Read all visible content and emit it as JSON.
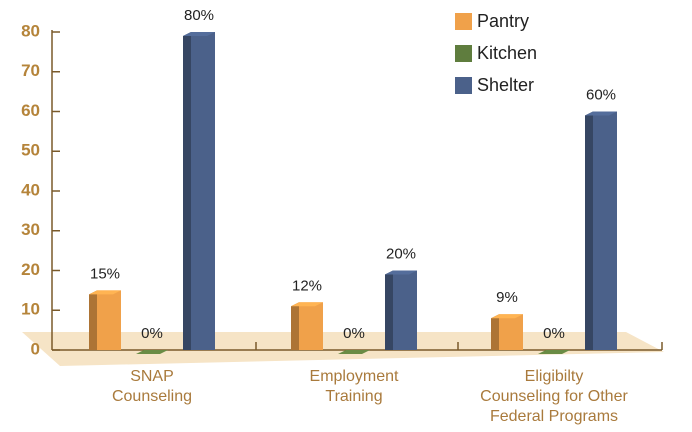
{
  "chart_data": {
    "type": "bar3d",
    "categories": [
      "SNAP\nCounseling",
      "Employment\nTraining",
      "Eligibilty\nCounseling for Other\nFederal Programs"
    ],
    "series": [
      {
        "name": "Pantry",
        "color": "#f0a14a",
        "values": [
          15,
          12,
          9
        ],
        "value_labels": [
          "15%",
          "12%",
          "9%"
        ]
      },
      {
        "name": "Kitchen",
        "color": "#5f7d3e",
        "values": [
          0,
          0,
          0
        ],
        "value_labels": [
          "0%",
          "0%",
          "0%"
        ]
      },
      {
        "name": "Shelter",
        "color": "#4b618a",
        "values": [
          80,
          20,
          60
        ],
        "value_labels": [
          "80%",
          "20%",
          "60%"
        ]
      }
    ],
    "ylim": [
      0,
      80
    ],
    "yticks": [
      0,
      10,
      20,
      30,
      40,
      50,
      60,
      70,
      80
    ],
    "legend": "top-right"
  }
}
